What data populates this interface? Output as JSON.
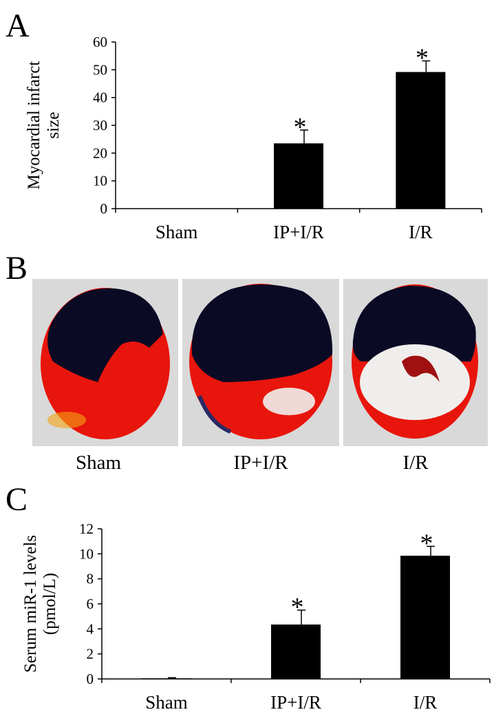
{
  "panels": {
    "a": "A",
    "b": "B",
    "c": "C"
  },
  "chart_data": [
    {
      "type": "bar",
      "categories": [
        "Sham",
        "IP+I/R",
        "I/R"
      ],
      "values": [
        0,
        23.5,
        49.2
      ],
      "errors": [
        0,
        4.8,
        4.0
      ],
      "significance": [
        "",
        "*",
        "*"
      ],
      "ylabel_lines": [
        "Myocardial infarct",
        "size"
      ],
      "ylim": [
        0,
        60
      ],
      "yticks": [
        0,
        10,
        20,
        30,
        40,
        50,
        60
      ],
      "bar_color": "#000000"
    },
    {
      "type": "bar",
      "categories": [
        "Sham",
        "IP+I/R",
        "I/R"
      ],
      "values": [
        0.05,
        4.35,
        9.85
      ],
      "errors": [
        0.05,
        1.15,
        0.75
      ],
      "significance": [
        "",
        "*",
        "*"
      ],
      "ylabel_lines": [
        "Serum miR-1 levels",
        "(pmol/L)"
      ],
      "ylim": [
        0,
        12
      ],
      "yticks": [
        0,
        2,
        4,
        6,
        8,
        10,
        12
      ],
      "bar_color": "#000000"
    }
  ],
  "photos": {
    "labels": [
      "Sham",
      "IP+I/R",
      "I/R"
    ],
    "colors": {
      "background": "#d9d9d9",
      "infarct_white": "#f0eeec",
      "viable_red": "#e8150c",
      "nonrisk_blue": "#0a0a24"
    }
  }
}
